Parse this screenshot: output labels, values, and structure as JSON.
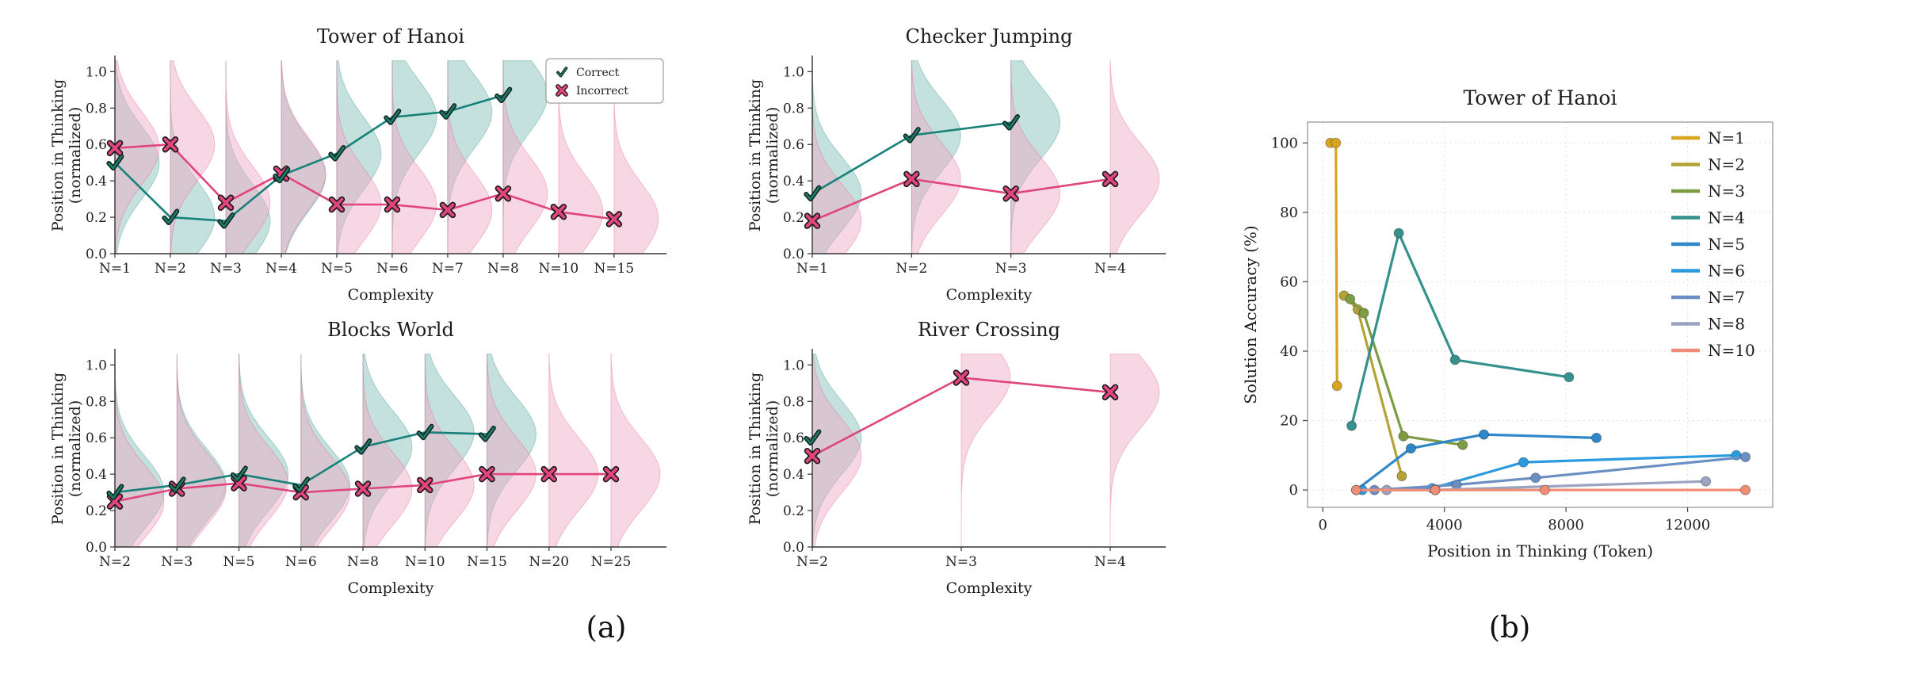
{
  "captions": {
    "a": "(a)",
    "b": "(b)"
  },
  "style": {
    "correct_line": "#17817a",
    "correct_fill": "#74b8ae",
    "check_fill": "#1d7a66",
    "check_outline": "#10231f",
    "incorrect_line": "#e0457b",
    "incorrect_fill": "#efa6c4",
    "x_outline": "#1a1a1a",
    "axis_color": "#333333",
    "grid_color": "#e0e0e0",
    "box_color": "#9a9a9a"
  },
  "chart_data": [
    {
      "type": "violin-line",
      "title": "Tower of Hanoi",
      "xlabel": "Complexity",
      "ylabel_lines": [
        "Position in Thinking",
        "(normalized)"
      ],
      "categories": [
        "N=1",
        "N=2",
        "N=3",
        "N=4",
        "N=5",
        "N=6",
        "N=7",
        "N=8",
        "N=10",
        "N=15"
      ],
      "yticks": [
        0,
        0.2,
        0.4,
        0.6,
        0.8,
        1.0
      ],
      "ytick_labels": [
        "0.0",
        "0.2",
        "0.4",
        "0.6",
        "0.8",
        "1.0"
      ],
      "ylim": [
        0,
        1.08
      ],
      "series": {
        "correct": [
          0.5,
          0.2,
          0.18,
          0.43,
          0.55,
          0.75,
          0.78,
          0.87,
          null,
          null
        ],
        "incorrect": [
          0.58,
          0.6,
          0.28,
          0.44,
          0.27,
          0.27,
          0.24,
          0.33,
          0.23,
          0.19
        ]
      },
      "legend": {
        "correct": "Correct",
        "incorrect": "Incorrect"
      }
    },
    {
      "type": "violin-line",
      "title": "Checker Jumping",
      "xlabel": "Complexity",
      "ylabel_lines": [
        "Position in Thinking",
        "(normalized)"
      ],
      "categories": [
        "N=1",
        "N=2",
        "N=3",
        "N=4"
      ],
      "yticks": [
        0,
        0.2,
        0.4,
        0.6,
        0.8,
        1.0
      ],
      "ytick_labels": [
        "0.0",
        "0.2",
        "0.4",
        "0.6",
        "0.8",
        "1.0"
      ],
      "ylim": [
        0,
        1.08
      ],
      "series": {
        "correct": [
          0.33,
          0.65,
          0.72,
          null
        ],
        "incorrect": [
          0.18,
          0.41,
          0.33,
          0.41
        ]
      }
    },
    {
      "type": "violin-line",
      "title": "Blocks World",
      "xlabel": "Complexity",
      "ylabel_lines": [
        "Position in Thinking",
        "(normalized)"
      ],
      "categories": [
        "N=2",
        "N=3",
        "N=5",
        "N=6",
        "N=8",
        "N=10",
        "N=15",
        "N=20",
        "N=25"
      ],
      "yticks": [
        0,
        0.2,
        0.4,
        0.6,
        0.8,
        1.0
      ],
      "ytick_labels": [
        "0.0",
        "0.2",
        "0.4",
        "0.6",
        "0.8",
        "1.0"
      ],
      "ylim": [
        0,
        1.08
      ],
      "series": {
        "correct": [
          0.3,
          0.34,
          0.4,
          0.34,
          0.55,
          0.63,
          0.62,
          null,
          null
        ],
        "incorrect": [
          0.25,
          0.32,
          0.35,
          0.3,
          0.32,
          0.34,
          0.4,
          0.4,
          0.4
        ]
      }
    },
    {
      "type": "violin-line",
      "title": "River Crossing",
      "xlabel": "Complexity",
      "ylabel_lines": [
        "Position in Thinking",
        "(normalized)"
      ],
      "categories": [
        "N=2",
        "N=3",
        "N=4"
      ],
      "yticks": [
        0,
        0.2,
        0.4,
        0.6,
        0.8,
        1.0
      ],
      "ytick_labels": [
        "0.0",
        "0.2",
        "0.4",
        "0.6",
        "0.8",
        "1.0"
      ],
      "ylim": [
        0,
        1.08
      ],
      "series": {
        "correct": [
          0.6,
          null,
          null
        ],
        "incorrect": [
          0.5,
          0.93,
          0.85
        ]
      }
    },
    {
      "type": "line",
      "title": "Tower of Hanoi",
      "xlabel": "Position in Thinking (Token)",
      "ylabel": "Solution Accuracy (%)",
      "xticks": [
        0,
        4000,
        8000,
        12000
      ],
      "xtick_labels": [
        "0",
        "4000",
        "8000",
        "12000"
      ],
      "yticks": [
        0,
        20,
        40,
        60,
        80,
        100
      ],
      "ytick_labels": [
        "0",
        "20",
        "40",
        "60",
        "80",
        "100"
      ],
      "xlim": [
        -500,
        14800
      ],
      "ylim": [
        -5,
        106
      ],
      "legend_position": "upper right",
      "series": [
        {
          "name": "N=1",
          "color": "#d8a51f",
          "x": [
            250,
            430,
            470
          ],
          "y": [
            100,
            100,
            30
          ]
        },
        {
          "name": "N=2",
          "color": "#b3a336",
          "x": [
            700,
            1150,
            2600
          ],
          "y": [
            56,
            52,
            4
          ]
        },
        {
          "name": "N=3",
          "color": "#7d9c44",
          "x": [
            900,
            1350,
            2650,
            4600
          ],
          "y": [
            55,
            51,
            15.5,
            13
          ]
        },
        {
          "name": "N=4",
          "color": "#35918e",
          "x": [
            950,
            2500,
            4350,
            8100
          ],
          "y": [
            18.5,
            74,
            37.5,
            32.5
          ]
        },
        {
          "name": "N=5",
          "color": "#2f87c9",
          "x": [
            1100,
            2900,
            5300,
            9000
          ],
          "y": [
            0,
            12,
            16,
            15
          ]
        },
        {
          "name": "N=6",
          "color": "#2b9be0",
          "x": [
            1300,
            3600,
            6600,
            13600
          ],
          "y": [
            0,
            0.5,
            8,
            10
          ]
        },
        {
          "name": "N=7",
          "color": "#6b8fc2",
          "x": [
            1700,
            4400,
            7000,
            13900
          ],
          "y": [
            0,
            1.5,
            3.5,
            9.5
          ]
        },
        {
          "name": "N=8",
          "color": "#9aa3c0",
          "x": [
            2100,
            3700,
            12600
          ],
          "y": [
            0,
            0,
            2.5
          ]
        },
        {
          "name": "N=10",
          "color": "#f08d76",
          "x": [
            1100,
            3700,
            7300,
            13900
          ],
          "y": [
            0,
            0,
            0,
            0
          ]
        }
      ]
    }
  ]
}
